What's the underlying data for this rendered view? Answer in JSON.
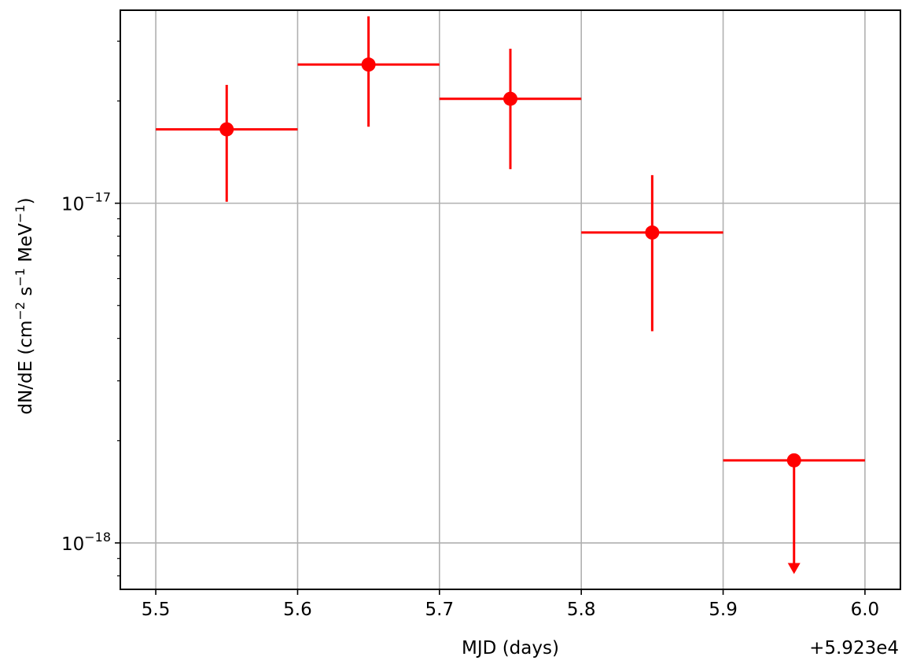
{
  "chart_data": {
    "type": "scatter",
    "xlabel": "MJD (days)",
    "ylabel_parts": {
      "lead": "dN/dE (cm",
      "exp1": "−2",
      "mid1": " s",
      "exp2": "−1",
      "mid2": " MeV",
      "exp3": "−1",
      "tail": ")"
    },
    "x_offset_label": "+5.923e4",
    "x_offset": 59230,
    "xlim": [
      59235.475,
      59236.025
    ],
    "ylim": [
      7.3e-19,
      3.7e-17
    ],
    "y_scale": "log",
    "grid": true,
    "x_ticks": [
      {
        "value": 59235.5,
        "label": "5.5"
      },
      {
        "value": 59235.6,
        "label": "5.6"
      },
      {
        "value": 59235.7,
        "label": "5.7"
      },
      {
        "value": 59235.8,
        "label": "5.8"
      },
      {
        "value": 59235.9,
        "label": "5.9"
      },
      {
        "value": 59236.0,
        "label": "6.0"
      }
    ],
    "y_major_ticks": [
      {
        "value": 1e-18,
        "base": "10",
        "exp": "−18"
      },
      {
        "value": 1e-17,
        "base": "10",
        "exp": "−17"
      }
    ],
    "color": "#ff0000",
    "points": [
      {
        "x": 59235.55,
        "y": 1.65e-17,
        "x_low": 59235.5,
        "x_high": 59235.6,
        "y_low": 1.01e-17,
        "y_high": 2.23e-17,
        "upper_limit": false
      },
      {
        "x": 59235.65,
        "y": 2.56e-17,
        "x_low": 59235.6,
        "x_high": 59235.7,
        "y_low": 1.68e-17,
        "y_high": 3.55e-17,
        "upper_limit": false
      },
      {
        "x": 59235.75,
        "y": 2.03e-17,
        "x_low": 59235.7,
        "x_high": 59235.8,
        "y_low": 1.26e-17,
        "y_high": 2.85e-17,
        "upper_limit": false
      },
      {
        "x": 59235.85,
        "y": 8.2e-18,
        "x_low": 59235.8,
        "x_high": 59235.9,
        "y_low": 4.2e-18,
        "y_high": 1.21e-17,
        "upper_limit": false
      },
      {
        "x": 59235.95,
        "y": 1.75e-18,
        "x_low": 59235.9,
        "x_high": 59236.0,
        "y_low": 8.1e-19,
        "y_high": 1.75e-18,
        "upper_limit": true
      }
    ]
  }
}
